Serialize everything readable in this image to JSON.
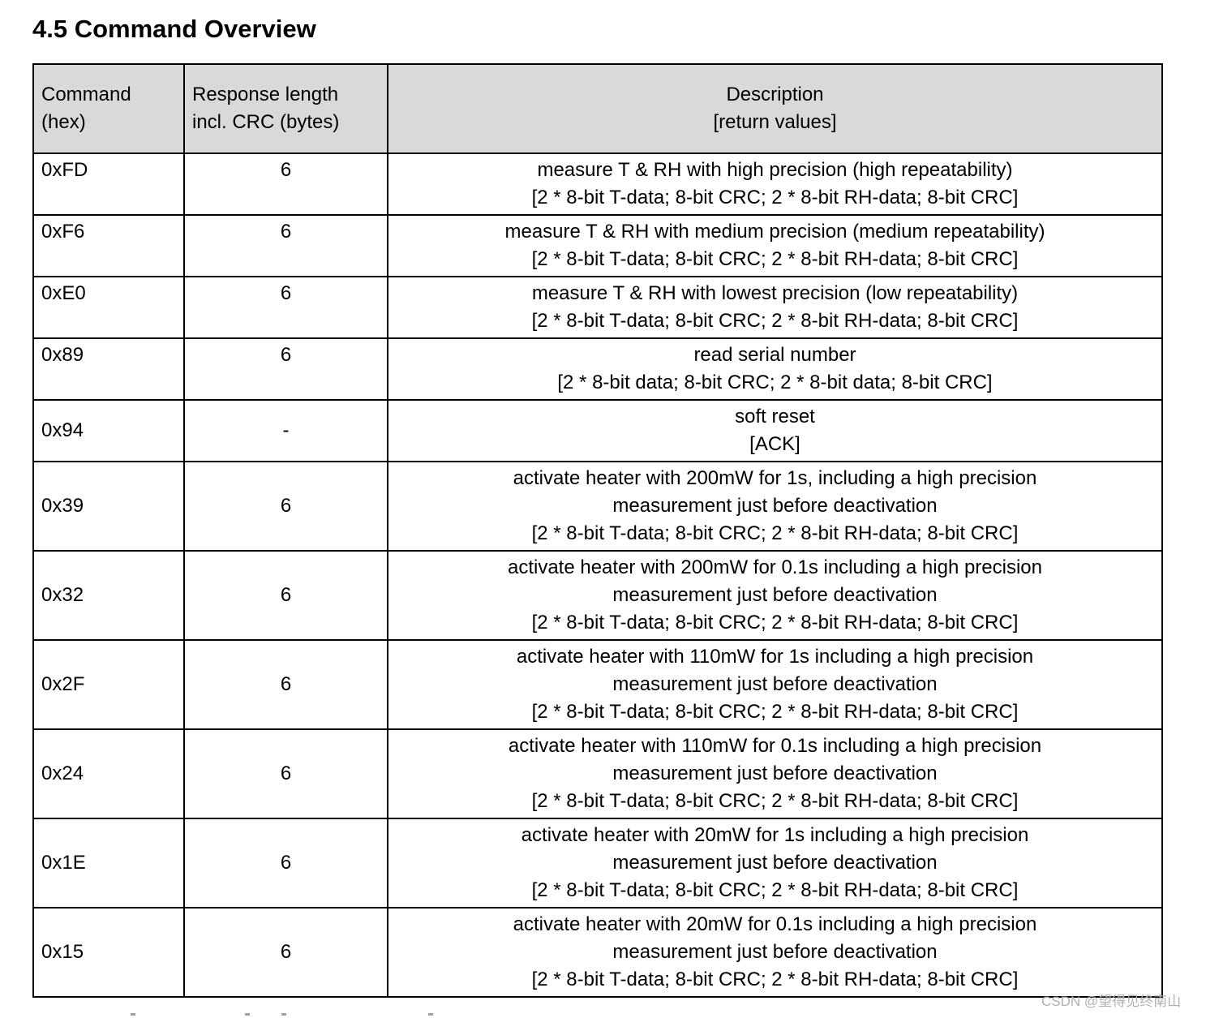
{
  "page": {
    "title": "4.5 Command Overview",
    "watermark": "CSDN @望得见终南山"
  },
  "table": {
    "headers": {
      "command": [
        "Command",
        "(hex)"
      ],
      "response": [
        "Response length",
        "incl. CRC (bytes)"
      ],
      "description": [
        "Description",
        "[return values]"
      ]
    },
    "rows": [
      {
        "command": "0xFD",
        "response": "6",
        "description": [
          "measure T & RH with high precision (high repeatability)",
          "[2 * 8-bit T-data; 8-bit CRC; 2 * 8-bit RH-data; 8-bit CRC]"
        ]
      },
      {
        "command": "0xF6",
        "response": "6",
        "description": [
          "measure T & RH with medium precision (medium repeatability)",
          "[2 * 8-bit T-data; 8-bit CRC; 2 * 8-bit RH-data; 8-bit CRC]"
        ]
      },
      {
        "command": "0xE0",
        "response": "6",
        "description": [
          "measure T & RH with lowest precision (low repeatability)",
          "[2 * 8-bit T-data; 8-bit CRC; 2 * 8-bit RH-data; 8-bit CRC]"
        ]
      },
      {
        "command": "0x89",
        "response": "6",
        "description": [
          "read serial number",
          "[2 * 8-bit data; 8-bit CRC; 2 * 8-bit data; 8-bit CRC]"
        ]
      },
      {
        "command": "0x94",
        "response": "-",
        "description": [
          "soft reset",
          "[ACK]"
        ]
      },
      {
        "command": "0x39",
        "response": "6",
        "description": [
          "activate heater with 200mW for 1s, including a high precision",
          "measurement just before deactivation",
          "[2 * 8-bit T-data; 8-bit CRC; 2 * 8-bit RH-data; 8-bit CRC]"
        ]
      },
      {
        "command": "0x32",
        "response": "6",
        "description": [
          "activate heater with 200mW for 0.1s including a high precision",
          "measurement just before deactivation",
          "[2 * 8-bit T-data; 8-bit CRC; 2 * 8-bit RH-data; 8-bit CRC]"
        ]
      },
      {
        "command": "0x2F",
        "response": "6",
        "description": [
          "activate heater with 110mW for 1s including a high precision",
          "measurement just before deactivation",
          "[2 * 8-bit T-data; 8-bit CRC; 2 * 8-bit RH-data; 8-bit CRC]"
        ]
      },
      {
        "command": "0x24",
        "response": "6",
        "description": [
          "activate heater with 110mW for 0.1s including a high precision",
          "measurement just before deactivation",
          "[2 * 8-bit T-data; 8-bit CRC; 2 * 8-bit RH-data; 8-bit CRC]"
        ]
      },
      {
        "command": "0x1E",
        "response": "6",
        "description": [
          "activate heater with 20mW for 1s including a high precision",
          "measurement just before deactivation",
          "[2 * 8-bit T-data; 8-bit CRC; 2 * 8-bit RH-data; 8-bit CRC]"
        ]
      },
      {
        "command": "0x15",
        "response": "6",
        "description": [
          "activate heater with 20mW for 0.1s including a high precision",
          "measurement just before deactivation",
          "[2 * 8-bit T-data; 8-bit CRC; 2 * 8-bit RH-data; 8-bit CRC]"
        ]
      }
    ]
  },
  "colors": {
    "header_bg": "#d9d9d9",
    "border": "#000000",
    "text": "#000000",
    "watermark": "#b0b0b0"
  }
}
